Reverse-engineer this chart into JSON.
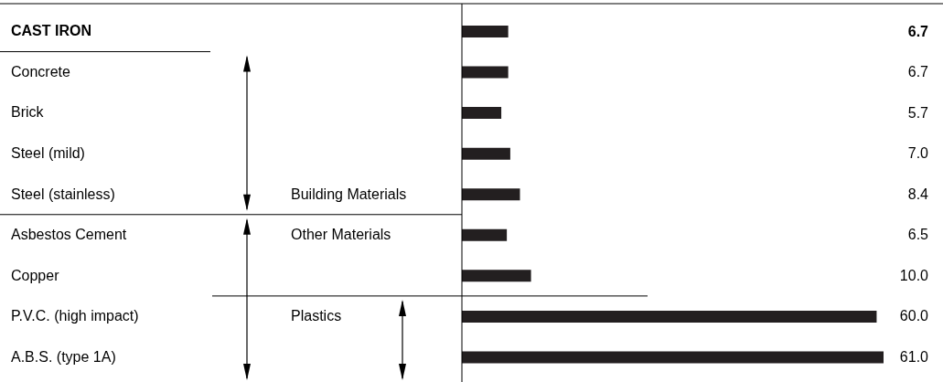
{
  "chart_data": {
    "type": "bar",
    "orientation": "horizontal",
    "categories": [
      "CAST IRON",
      "Concrete",
      "Brick",
      "Steel (mild)",
      "Steel (stainless)",
      "Asbestos Cement",
      "Copper",
      "P.V.C. (high impact)",
      "A.B.S. (type 1A)"
    ],
    "values": [
      6.7,
      6.7,
      5.7,
      7.0,
      8.4,
      6.5,
      10.0,
      60.0,
      61.0
    ],
    "value_labels": [
      "6.7",
      "6.7",
      "5.7",
      "7.0",
      "8.4",
      "6.5",
      "10.0",
      "60.0",
      "61.0"
    ],
    "color": "#231f20",
    "annotations": [
      "Building Materials",
      "Other Materials",
      "Plastics"
    ]
  }
}
